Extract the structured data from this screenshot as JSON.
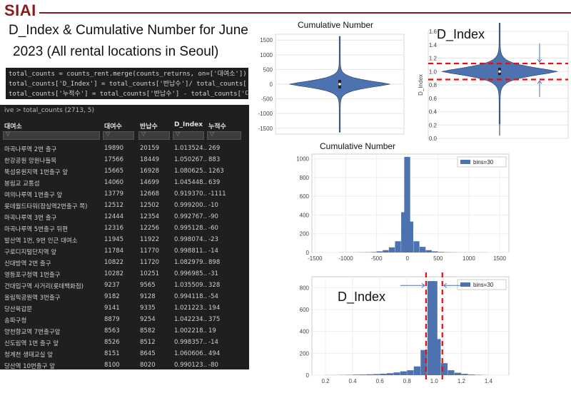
{
  "header": {
    "logo": "SIAI"
  },
  "title": {
    "line1": "D_Index & Cumulative Number for June",
    "line2": "2023 (All rental locations in Seoul)"
  },
  "code_lines": [
    "total_counts = counts_rent.merge(counts_returns, on=['대여소'])",
    "total_counts['D_Index'] = total_counts['반납수']/ total_counts['대여수']",
    "total_counts['누적수'] = total_counts['반납수'] - total_counts['대여수']"
  ],
  "table": {
    "breadcrumb": "ive > total_counts (2713, 5)",
    "columns": [
      "대여소",
      "대여수",
      "반납수",
      "D_Index",
      "누적수"
    ],
    "filter_glyph": "▽",
    "rows": [
      [
        "마곡나루역 2번 출구",
        "19890",
        "20159",
        "1.013524...",
        "269"
      ],
      [
        "한강공원 망원나들목",
        "17566",
        "18449",
        "1.050267...",
        "883"
      ],
      [
        "뚝섬유원지역 1번출구 앞",
        "15665",
        "16928",
        "1.080625...",
        "1263"
      ],
      [
        "봉림교 교통섬",
        "14060",
        "14699",
        "1.045448...",
        "639"
      ],
      [
        "여의나루역 1번출구 앞",
        "13779",
        "12668",
        "0.919370...",
        "-1111"
      ],
      [
        "롯데월드타워(잠실역2번출구 쪽)",
        "12512",
        "12502",
        "0.999200...",
        "-10"
      ],
      [
        "마곡나루역 3번 출구",
        "12444",
        "12354",
        "0.992767...",
        "-90"
      ],
      [
        "마곡나루역 5번출구 뒤편",
        "12316",
        "12256",
        "0.995128...",
        "-60"
      ],
      [
        "발산역 1번, 9번 인근 대여소",
        "11945",
        "11922",
        "0.998074...",
        "-23"
      ],
      [
        "구로디지털단지역 앞",
        "11784",
        "11770",
        "0.998811...",
        "-14"
      ],
      [
        "신대방역 2번 출구",
        "10822",
        "11720",
        "1.082979...",
        "898"
      ],
      [
        "영등포구청역 1번출구",
        "10282",
        "10251",
        "0.996985...",
        "-31"
      ],
      [
        "건대입구역 사거리(롯데백화점)",
        "9237",
        "9565",
        "1.035509...",
        "328"
      ],
      [
        "올림픽공원역 3번출구",
        "9182",
        "9128",
        "0.994118...",
        "-54"
      ],
      [
        "당산육갑문",
        "9141",
        "9335",
        "1.021223...",
        "194"
      ],
      [
        "송파구청",
        "8879",
        "9254",
        "1.042234...",
        "375"
      ],
      [
        "양천향교역 7번출구앞",
        "8563",
        "8582",
        "1.002218...",
        "19"
      ],
      [
        "신도림역 1번 출구 앞",
        "8526",
        "8512",
        "0.998357...",
        "-14"
      ],
      [
        "청계천 생태교실 앞",
        "8151",
        "8645",
        "1.060606...",
        "494"
      ],
      [
        "당산역 10번출구 앞",
        "8100",
        "8020",
        "0.990123...",
        "-80"
      ]
    ]
  },
  "violin_cumulative": {
    "title": "Cumulative Number",
    "y_range": [
      -1700,
      1700
    ],
    "y_ticks": [
      "1500",
      "1000",
      "500",
      "0",
      "-500",
      "-1000",
      "-1500"
    ]
  },
  "violin_dindex": {
    "title": "D_Index",
    "ylabel": "D_Index",
    "y_range": [
      0,
      1.6
    ],
    "y_ticks": [
      "1.6",
      "1.4",
      "1.2",
      "1.0",
      "0.8",
      "0.6",
      "0.4",
      "0.2",
      "0.0"
    ],
    "dashed_lines": [
      1.12,
      0.88
    ]
  },
  "hist_cumulative": {
    "title": "Cumulative Number",
    "legend": "bins=30",
    "x_ticks": [
      "-1500",
      "-1000",
      "-500",
      "0",
      "500",
      "1000",
      "1500"
    ],
    "y_ticks": [
      "1000",
      "800",
      "600",
      "400",
      "200",
      "0"
    ],
    "x_range": [
      -1550,
      1650
    ],
    "y_range": [
      0,
      1050
    ]
  },
  "hist_dindex": {
    "label": "D_Index",
    "legend": "bins=30",
    "x_ticks": [
      "0.2",
      "0.4",
      "0.6",
      "0.8",
      "1.0",
      "1.2",
      "1.4"
    ],
    "y_ticks": [
      "800",
      "600",
      "400",
      "200",
      "0"
    ],
    "x_range": [
      0.1,
      1.55
    ],
    "y_range": [
      0,
      900
    ],
    "dashed_lines": [
      0.94,
      1.06
    ]
  },
  "colors": {
    "accent": "#8b1a1a",
    "bar": "#4c72b0",
    "dash": "#dd1111"
  },
  "chart_data": [
    {
      "type": "bar",
      "title": "Cumulative Number",
      "x": [
        -1050,
        -950,
        -850,
        -750,
        -650,
        -550,
        -450,
        -350,
        -250,
        -150,
        -50,
        0,
        50,
        150,
        250,
        350,
        450,
        550,
        650,
        750,
        850,
        950,
        1050,
        1150,
        1250
      ],
      "values": [
        1,
        1,
        1,
        2,
        3,
        5,
        12,
        25,
        55,
        120,
        430,
        1020,
        330,
        120,
        60,
        25,
        12,
        6,
        3,
        2,
        1,
        1,
        1,
        1,
        1
      ],
      "legend": "bins=30",
      "xlim": [
        -1550,
        1650
      ],
      "ylim": [
        0,
        1050
      ]
    },
    {
      "type": "bar",
      "title": "",
      "x": [
        0.225,
        0.275,
        0.325,
        0.375,
        0.425,
        0.475,
        0.525,
        0.575,
        0.625,
        0.675,
        0.725,
        0.775,
        0.825,
        0.875,
        0.925,
        0.975,
        1.0,
        1.025,
        1.075,
        1.125,
        1.175,
        1.225,
        1.275,
        1.325,
        1.375
      ],
      "values": [
        1,
        1,
        2,
        3,
        5,
        6,
        8,
        10,
        13,
        18,
        25,
        35,
        45,
        80,
        230,
        860,
        860,
        330,
        110,
        45,
        22,
        12,
        6,
        3,
        1
      ],
      "legend": "bins=30",
      "xlim": [
        0.1,
        1.55
      ],
      "ylim": [
        0,
        900
      ]
    }
  ]
}
